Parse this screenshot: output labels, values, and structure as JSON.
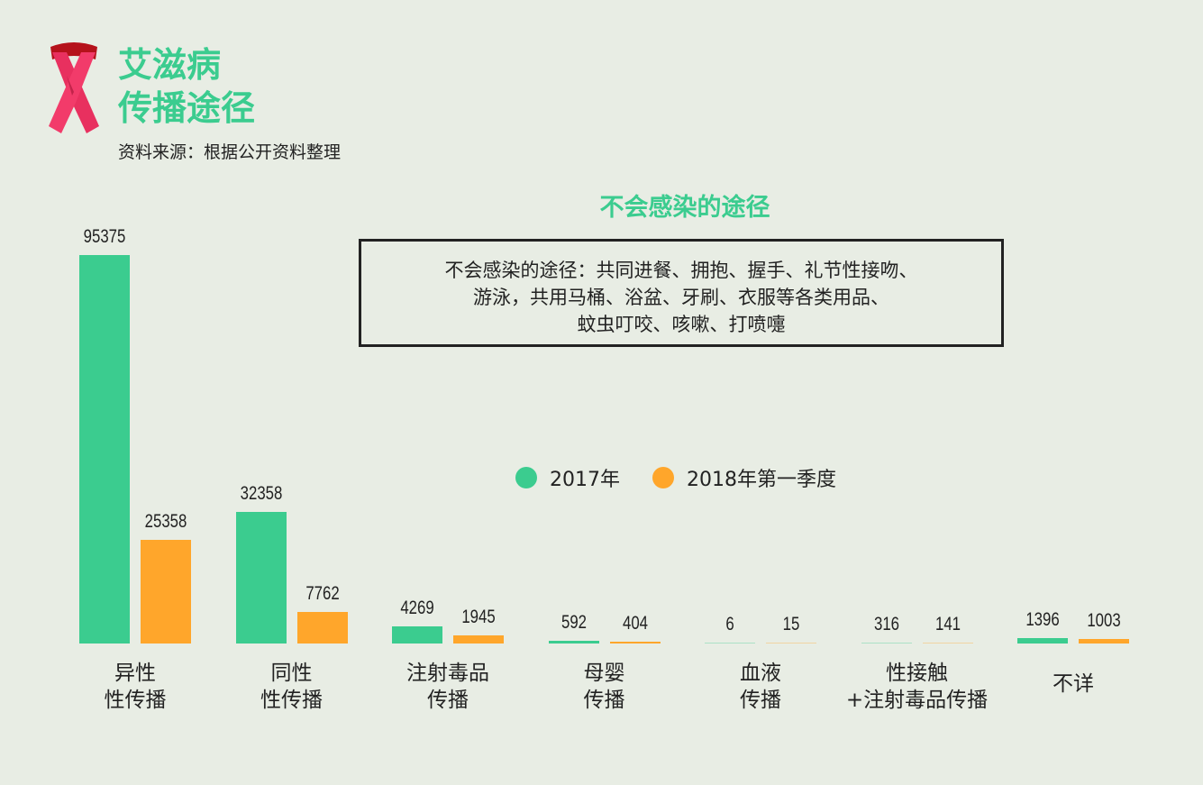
{
  "header": {
    "title_line1": "艾滋病",
    "title_line2": "传播途径",
    "source": "资料来源：根据公开资料整理",
    "icon": "red-ribbon-icon"
  },
  "note": {
    "heading": "不会感染的途径",
    "lines": [
      "不会感染的途径：共同进餐、拥抱、握手、礼节性接吻、",
      "游泳，共用马桶、浴盆、牙刷、衣服等各类用品、",
      "蚊虫叮咬、咳嗽、打喷嚏"
    ]
  },
  "legend": [
    {
      "label": "2017年",
      "color": "#3bcc8f"
    },
    {
      "label": "2018年第一季度",
      "color": "#ffa62b"
    }
  ],
  "colors": {
    "green": "#3bcc8f",
    "orange": "#ffa62b",
    "background": "#e8ede4"
  },
  "chart_data": {
    "type": "bar",
    "title": "艾滋病传播途径",
    "categories": [
      "异性性传播",
      "同性性传播",
      "注射毒品传播",
      "母婴传播",
      "血液传播",
      "性接触+注射毒品传播",
      "不详"
    ],
    "category_lines": [
      [
        "异性",
        "性传播"
      ],
      [
        "同性",
        "性传播"
      ],
      [
        "注射毒品",
        "传播"
      ],
      [
        "母婴",
        "传播"
      ],
      [
        "血液",
        "传播"
      ],
      [
        "性接触",
        "+注射毒品传播"
      ],
      [
        "不详",
        ""
      ]
    ],
    "series": [
      {
        "name": "2017年",
        "values": [
          95375,
          32358,
          4269,
          592,
          6,
          316,
          1396
        ]
      },
      {
        "name": "2018年第一季度",
        "values": [
          25358,
          7762,
          1945,
          404,
          15,
          141,
          1003
        ]
      }
    ],
    "xlabel": "",
    "ylabel": "",
    "grid": false,
    "legend_position": "center"
  }
}
